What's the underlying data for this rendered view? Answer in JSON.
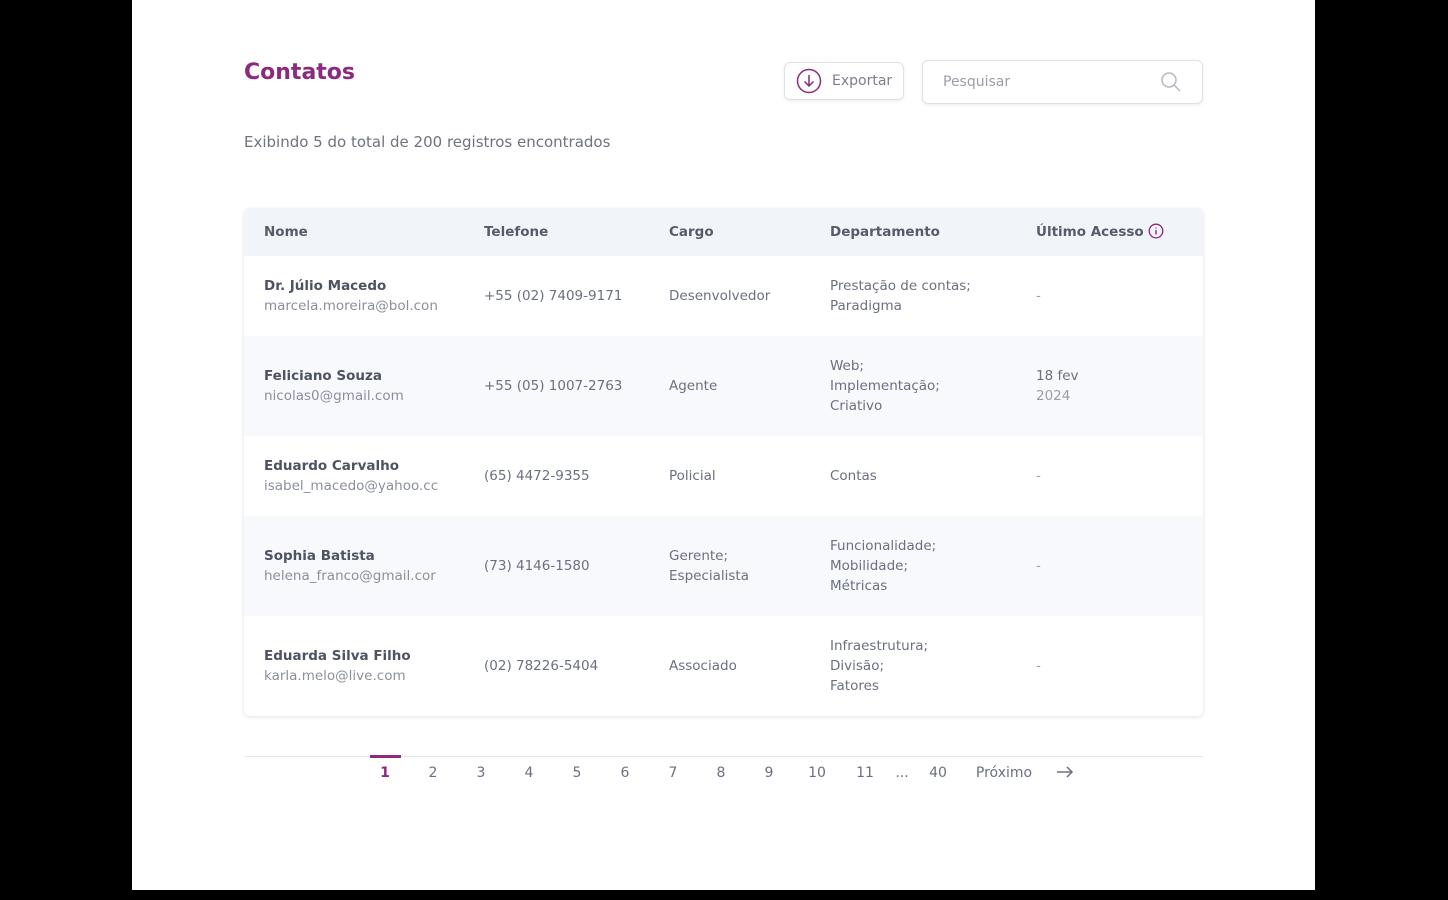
{
  "header": {
    "title": "Contatos",
    "export": "Exportar",
    "search_placeholder": "Pesquisar",
    "summary": "Exibindo 5 do total de 200 registros encontrados"
  },
  "table": {
    "columns": [
      "Nome",
      "Telefone",
      "Cargo",
      "Departamento",
      "Último Acesso"
    ],
    "rows": [
      {
        "name": "Dr. Júlio Macedo",
        "email": "marcela.moreira@bol.con",
        "phone": "+55 (02) 7409-9171",
        "role": [
          "Desenvolvedor"
        ],
        "departments": [
          "Prestação de contas;",
          "Paradigma"
        ],
        "last_access": [
          "-"
        ]
      },
      {
        "name": "Feliciano Souza",
        "email": "nicolas0@gmail.com",
        "phone": "+55 (05) 1007-2763",
        "role": [
          "Agente"
        ],
        "departments": [
          "Web;",
          "Implementação;",
          "Criativo"
        ],
        "last_access": [
          "18 fev",
          "2024"
        ]
      },
      {
        "name": "Eduardo Carvalho",
        "email": "isabel_macedo@yahoo.cc",
        "phone": "(65) 4472-9355",
        "role": [
          "Policial"
        ],
        "departments": [
          "Contas"
        ],
        "last_access": [
          "-"
        ]
      },
      {
        "name": "Sophia Batista",
        "email": "helena_franco@gmail.cor",
        "phone": "(73) 4146-1580",
        "role": [
          "Gerente;",
          "Especialista"
        ],
        "departments": [
          "Funcionalidade;",
          "Mobilidade;",
          "Métricas"
        ],
        "last_access": [
          "-"
        ]
      },
      {
        "name": "Eduarda Silva Filho",
        "email": "karla.melo@live.com",
        "phone": "(02) 78226-5404",
        "role": [
          "Associado"
        ],
        "departments": [
          "Infraestrutura;",
          "Divisão;",
          "Fatores"
        ],
        "last_access": [
          "-"
        ]
      }
    ]
  },
  "pagination": {
    "pages": [
      "1",
      "2",
      "3",
      "4",
      "5",
      "6",
      "7",
      "8",
      "9",
      "10",
      "11",
      "...",
      "40"
    ],
    "next": "Próximo"
  }
}
